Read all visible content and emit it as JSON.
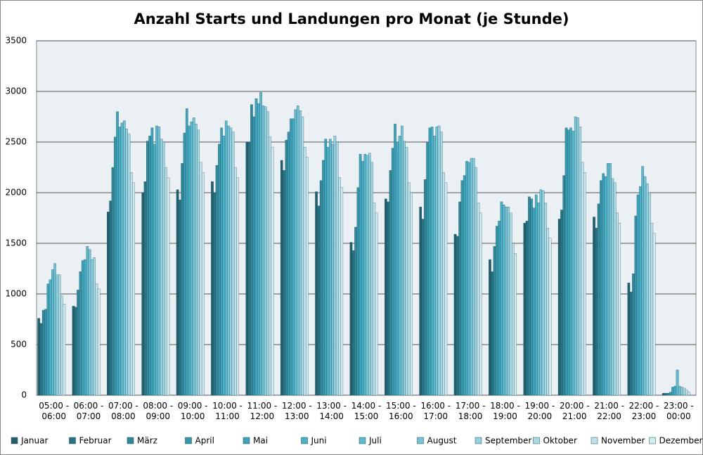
{
  "chart_data": {
    "type": "bar",
    "title": "Anzahl Starts und Landungen pro Monat (je Stunde)",
    "categories": [
      "05:00 - 06:00",
      "06:00 - 07:00",
      "07:00 - 08:00",
      "08:00 - 09:00",
      "09:00 - 10:00",
      "10:00 - 11:00",
      "11:00 - 12:00",
      "12:00 - 13:00",
      "13:00 - 14:00",
      "14:00 - 15:00",
      "15:00 - 16:00",
      "16:00 - 17:00",
      "17:00 - 18:00",
      "18:00 - 19:00",
      "19:00 - 20:00",
      "20:00 - 21:00",
      "21:00 - 22:00",
      "22:00 - 23:00",
      "23:00 - 00:00"
    ],
    "series": [
      {
        "name": "Januar",
        "color": "#215f6e",
        "values": [
          760,
          880,
          1810,
          2000,
          2030,
          2110,
          2500,
          2320,
          2010,
          1510,
          1940,
          1860,
          1590,
          1340,
          1700,
          1740,
          1760,
          1110,
          20
        ]
      },
      {
        "name": "Februar",
        "color": "#2a7384",
        "values": [
          710,
          870,
          1920,
          2110,
          1930,
          2000,
          2500,
          2220,
          1870,
          1430,
          1910,
          1740,
          1570,
          1220,
          1720,
          1830,
          1650,
          1020,
          20
        ]
      },
      {
        "name": "März",
        "color": "#31869a",
        "values": [
          840,
          1040,
          2250,
          2510,
          2290,
          2270,
          2870,
          2520,
          2120,
          1660,
          2220,
          2130,
          1910,
          1470,
          1960,
          2170,
          1890,
          1200,
          20
        ]
      },
      {
        "name": "April",
        "color": "#3896ab",
        "values": [
          850,
          1220,
          2550,
          2560,
          2590,
          2480,
          2750,
          2600,
          2320,
          2050,
          2440,
          2500,
          2120,
          1670,
          1940,
          2640,
          2120,
          1770,
          30
        ]
      },
      {
        "name": "Mai",
        "color": "#3fa4bb",
        "values": [
          1100,
          1330,
          2800,
          2640,
          2830,
          2640,
          2930,
          2730,
          2530,
          2380,
          2680,
          2640,
          2170,
          1720,
          1850,
          2620,
          2190,
          1980,
          80
        ]
      },
      {
        "name": "Juni",
        "color": "#4ab0c6",
        "values": [
          1140,
          1340,
          2650,
          2480,
          2660,
          2560,
          2880,
          2730,
          2450,
          2310,
          2500,
          2650,
          2310,
          1910,
          1980,
          2640,
          2160,
          2060,
          90
        ]
      },
      {
        "name": "Juli",
        "color": "#5fbad0",
        "values": [
          1240,
          1470,
          2690,
          2660,
          2700,
          2710,
          2990,
          2820,
          2530,
          2380,
          2560,
          2560,
          2300,
          1880,
          1900,
          2610,
          2290,
          2260,
          250
        ]
      },
      {
        "name": "August",
        "color": "#77c4d7",
        "values": [
          1300,
          1440,
          2710,
          2650,
          2740,
          2660,
          2860,
          2860,
          2480,
          2370,
          2660,
          2650,
          2340,
          1860,
          2030,
          2750,
          2290,
          2160,
          90
        ]
      },
      {
        "name": "September",
        "color": "#92cfdf",
        "values": [
          1190,
          1340,
          2630,
          2530,
          2680,
          2640,
          2850,
          2810,
          2560,
          2390,
          2510,
          2660,
          2340,
          1860,
          2020,
          2740,
          2140,
          2090,
          80
        ]
      },
      {
        "name": "Oktober",
        "color": "#aad9e6",
        "values": [
          1190,
          1360,
          2580,
          2500,
          2620,
          2600,
          2800,
          2750,
          2500,
          2300,
          2450,
          2600,
          2250,
          1800,
          1900,
          2650,
          2100,
          2000,
          70
        ]
      },
      {
        "name": "November",
        "color": "#c0e2ec",
        "values": [
          980,
          1100,
          2200,
          2250,
          2300,
          2250,
          2550,
          2450,
          2150,
          1900,
          2100,
          2200,
          1900,
          1500,
          1650,
          2300,
          1800,
          1700,
          50
        ]
      },
      {
        "name": "Dezember",
        "color": "#d3ebf2",
        "values": [
          900,
          1050,
          2100,
          2150,
          2200,
          2150,
          2450,
          2350,
          2050,
          1800,
          2000,
          2100,
          1800,
          1400,
          1550,
          2200,
          1700,
          1600,
          30
        ]
      }
    ],
    "ylim": [
      0,
      3500
    ],
    "yticks": [
      0,
      500,
      1000,
      1500,
      2000,
      2500,
      3000,
      3500
    ],
    "grid": true,
    "legend": "bottom"
  }
}
